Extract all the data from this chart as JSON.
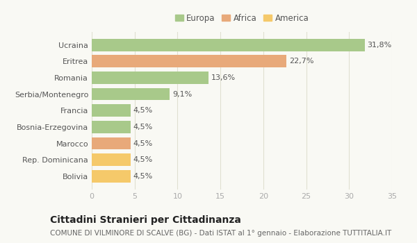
{
  "categories": [
    "Bolivia",
    "Rep. Dominicana",
    "Marocco",
    "Bosnia-Erzegovina",
    "Francia",
    "Serbia/Montenegro",
    "Romania",
    "Eritrea",
    "Ucraina"
  ],
  "values": [
    4.5,
    4.5,
    4.5,
    4.5,
    4.5,
    9.1,
    13.6,
    22.7,
    31.8
  ],
  "labels": [
    "4,5%",
    "4,5%",
    "4,5%",
    "4,5%",
    "4,5%",
    "9,1%",
    "13,6%",
    "22,7%",
    "31,8%"
  ],
  "colors": [
    "#f5c96a",
    "#f5c96a",
    "#e8a97a",
    "#a8c98a",
    "#a8c98a",
    "#a8c98a",
    "#a8c98a",
    "#e8a97a",
    "#a8c98a"
  ],
  "legend": [
    {
      "label": "Europa",
      "color": "#a8c98a"
    },
    {
      "label": "Africa",
      "color": "#e8a97a"
    },
    {
      "label": "America",
      "color": "#f5c96a"
    }
  ],
  "xlim": [
    0,
    35
  ],
  "xticks": [
    0,
    5,
    10,
    15,
    20,
    25,
    30,
    35
  ],
  "title": "Cittadini Stranieri per Cittadinanza",
  "subtitle": "COMUNE DI VILMINORE DI SCALVE (BG) - Dati ISTAT al 1° gennaio - Elaborazione TUTTITALIA.IT",
  "background_color": "#f9f9f4",
  "plot_bg_color": "#f9f9f4",
  "grid_color": "#e0e0d0",
  "bar_height": 0.75,
  "label_fontsize": 8,
  "title_fontsize": 10,
  "subtitle_fontsize": 7.5
}
